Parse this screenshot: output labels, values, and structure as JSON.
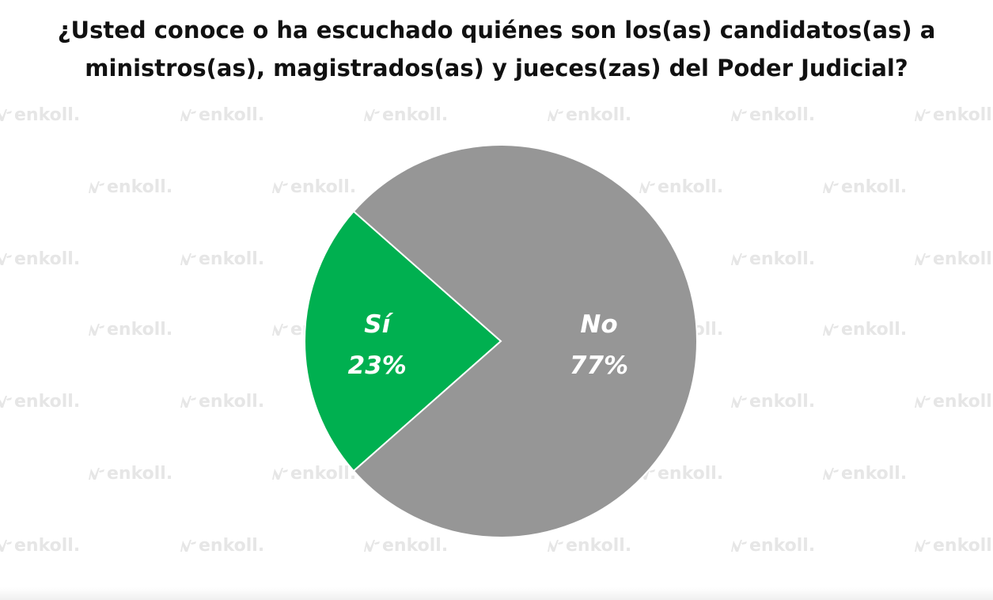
{
  "watermark": {
    "text": "enkoll.",
    "icon": "enkoll-logo-icon",
    "color": "#e6e6e6"
  },
  "chart_data": {
    "type": "pie",
    "title_lines": [
      "¿Usted conoce o ha escuchado quiénes son los(as) candidatos(as) a",
      "ministros(as), magistrados(as) y jueces(zas) del Poder Judicial?"
    ],
    "slices": [
      {
        "label": "Sí",
        "value": 23,
        "value_label": "23%",
        "color": "#00b050"
      },
      {
        "label": "No",
        "value": 77,
        "value_label": "77%",
        "color": "#969696"
      }
    ],
    "legend": "none"
  }
}
